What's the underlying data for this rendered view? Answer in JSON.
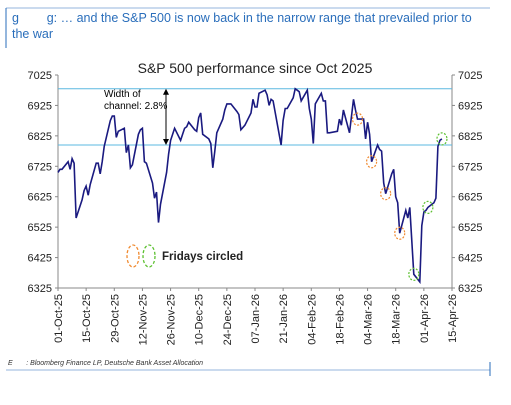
{
  "header": {
    "title": "g        g: … and the S&P 500 is now back in the narrow range that prevailed prior to the war"
  },
  "chart_data": {
    "type": "line",
    "title": "S&P 500 performance since Oct 2025",
    "x": [
      "2025-10-01",
      "2025-10-02",
      "2025-10-03",
      "2025-10-06",
      "2025-10-07",
      "2025-10-08",
      "2025-10-09",
      "2025-10-10",
      "2025-10-13",
      "2025-10-14",
      "2025-10-15",
      "2025-10-16",
      "2025-10-17",
      "2025-10-20",
      "2025-10-21",
      "2025-10-22",
      "2025-10-23",
      "2025-10-24",
      "2025-10-27",
      "2025-10-28",
      "2025-10-29",
      "2025-10-30",
      "2025-10-31",
      "2025-11-03",
      "2025-11-04",
      "2025-11-05",
      "2025-11-06",
      "2025-11-07",
      "2025-11-10",
      "2025-11-11",
      "2025-11-12",
      "2025-11-13",
      "2025-11-14",
      "2025-11-17",
      "2025-11-18",
      "2025-11-19",
      "2025-11-20",
      "2025-11-21",
      "2025-11-24",
      "2025-11-25",
      "2025-11-26",
      "2025-11-28",
      "2025-12-01",
      "2025-12-02",
      "2025-12-03",
      "2025-12-04",
      "2025-12-05",
      "2025-12-08",
      "2025-12-09",
      "2025-12-10",
      "2025-12-11",
      "2025-12-12",
      "2025-12-15",
      "2025-12-16",
      "2025-12-17",
      "2025-12-18",
      "2025-12-19",
      "2025-12-22",
      "2025-12-23",
      "2025-12-24",
      "2025-12-26",
      "2025-12-29",
      "2025-12-30",
      "2025-12-31",
      "2026-01-02",
      "2026-01-05",
      "2026-01-06",
      "2026-01-07",
      "2026-01-08",
      "2026-01-09",
      "2026-01-12",
      "2026-01-13",
      "2026-01-14",
      "2026-01-15",
      "2026-01-16",
      "2026-01-20",
      "2026-01-21",
      "2026-01-22",
      "2026-01-23",
      "2026-01-26",
      "2026-01-27",
      "2026-01-28",
      "2026-01-29",
      "2026-01-30",
      "2026-02-02",
      "2026-02-03",
      "2026-02-04",
      "2026-02-05",
      "2026-02-06",
      "2026-02-09",
      "2026-02-10",
      "2026-02-11",
      "2026-02-12",
      "2026-02-13",
      "2026-02-17",
      "2026-02-18",
      "2026-02-19",
      "2026-02-20",
      "2026-02-23",
      "2026-02-24",
      "2026-02-25",
      "2026-02-26",
      "2026-02-27",
      "2026-03-02",
      "2026-03-03",
      "2026-03-04",
      "2026-03-05",
      "2026-03-06",
      "2026-03-09",
      "2026-03-10",
      "2026-03-11",
      "2026-03-12",
      "2026-03-13",
      "2026-03-16",
      "2026-03-17",
      "2026-03-18",
      "2026-03-19",
      "2026-03-20",
      "2026-03-23",
      "2026-03-24",
      "2026-03-25",
      "2026-03-26",
      "2026-03-27",
      "2026-03-30",
      "2026-03-31",
      "2026-04-01",
      "2026-04-02",
      "2026-04-03",
      "2026-04-06",
      "2026-04-07",
      "2026-04-08",
      "2026-04-09",
      "2026-04-10"
    ],
    "series": [
      {
        "name": "S&P 500",
        "color": "#1a1a80",
        "values": [
          6705,
          6715,
          6715,
          6740,
          6715,
          6750,
          6735,
          6555,
          6615,
          6645,
          6660,
          6630,
          6665,
          6735,
          6735,
          6700,
          6740,
          6790,
          6875,
          6890,
          6890,
          6820,
          6840,
          6850,
          6770,
          6795,
          6720,
          6730,
          6830,
          6845,
          6850,
          6740,
          6735,
          6670,
          6620,
          6640,
          6540,
          6600,
          6705,
          6765,
          6810,
          6850,
          6810,
          6830,
          6850,
          6855,
          6870,
          6845,
          6840,
          6885,
          6900,
          6830,
          6815,
          6800,
          6720,
          6775,
          6835,
          6880,
          6910,
          6930,
          6930,
          6905,
          6895,
          6845,
          6860,
          6900,
          6945,
          6920,
          6920,
          6965,
          6975,
          6960,
          6925,
          6945,
          6940,
          6795,
          6875,
          6915,
          6915,
          6950,
          6980,
          6975,
          6970,
          6940,
          6975,
          6915,
          6880,
          6800,
          6930,
          6965,
          6940,
          6940,
          6835,
          6835,
          6840,
          6880,
          6860,
          6910,
          6835,
          6890,
          6945,
          6910,
          6880,
          6880,
          6815,
          6870,
          6830,
          6740,
          6795,
          6780,
          6775,
          6670,
          6635,
          6700,
          6715,
          6625,
          6605,
          6505,
          6580,
          6555,
          6590,
          6480,
          6370,
          6345,
          6530,
          6575,
          6580,
          6590,
          6605,
          6620,
          6790,
          6810,
          6815
        ]
      }
    ],
    "xlim": [
      "2025-10-01",
      "2026-04-15"
    ],
    "xticks": [
      "01-Oct-25",
      "15-Oct-25",
      "29-Oct-25",
      "12-Nov-25",
      "26-Nov-25",
      "10-Dec-25",
      "24-Dec-25",
      "07-Jan-26",
      "21-Jan-26",
      "04-Feb-26",
      "18-Feb-26",
      "04-Mar-26",
      "18-Mar-26",
      "01-Apr-26",
      "15-Apr-26"
    ],
    "xtick_dates": [
      "2025-10-01",
      "2025-10-15",
      "2025-10-29",
      "2025-11-12",
      "2025-11-26",
      "2025-12-10",
      "2025-12-24",
      "2026-01-07",
      "2026-01-21",
      "2026-02-04",
      "2026-02-18",
      "2026-03-04",
      "2026-03-18",
      "2026-04-01",
      "2026-04-15"
    ],
    "ylim": [
      6325,
      7025
    ],
    "yticks": [
      6325,
      6425,
      6525,
      6625,
      6725,
      6825,
      6925,
      7025
    ],
    "hlines": [
      6980,
      6795
    ],
    "hline_color": "#5bb8e0",
    "annotation": [
      "Width of",
      "channel: 2.8%"
    ],
    "circled": [
      {
        "x": "2026-02-27",
        "color": "#f08a30"
      },
      {
        "x": "2026-03-06",
        "color": "#f08a30"
      },
      {
        "x": "2026-03-13",
        "color": "#f08a30"
      },
      {
        "x": "2026-03-20",
        "color": "#f08a30"
      },
      {
        "x": "2026-03-27",
        "color": "#5cc030"
      },
      {
        "x": "2026-04-03",
        "color": "#5cc030"
      },
      {
        "x": "2026-04-10",
        "color": "#5cc030"
      }
    ],
    "legend": {
      "text": "Fridays circled",
      "colors": [
        "#f08a30",
        "#5cc030"
      ]
    }
  },
  "footer": {
    "source": "E       : Bloomberg Finance LP, Deutsche Bank Asset Allocation"
  }
}
